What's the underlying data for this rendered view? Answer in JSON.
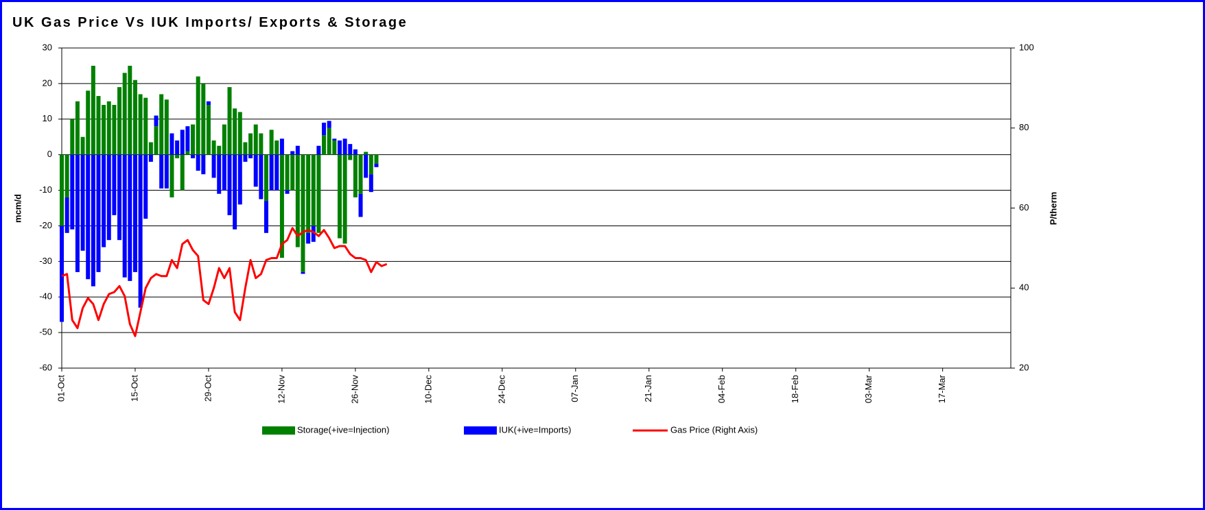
{
  "chart_data": {
    "type": "bar",
    "stacked": true,
    "title": "UK Gas Price Vs IUK Imports/ Exports & Storage",
    "y_label": "mcm/d",
    "y2_label": "P/therm",
    "ylim": [
      -60,
      30
    ],
    "yticks": [
      -60,
      -50,
      -40,
      -30,
      -20,
      -10,
      0,
      10,
      20,
      30
    ],
    "y2lim": [
      20,
      100
    ],
    "y2ticks": [
      20,
      40,
      60,
      80,
      100
    ],
    "grid": true,
    "legend": "bottom",
    "categories": [
      "01-Oct",
      null,
      null,
      null,
      null,
      null,
      null,
      null,
      null,
      null,
      null,
      null,
      null,
      null,
      "15-Oct",
      null,
      null,
      null,
      null,
      null,
      null,
      null,
      null,
      null,
      null,
      null,
      null,
      null,
      "29-Oct",
      null,
      null,
      null,
      null,
      null,
      null,
      null,
      null,
      null,
      null,
      null,
      null,
      null,
      "12-Nov",
      null,
      null,
      null,
      null,
      null,
      null,
      null,
      null,
      null,
      null,
      null,
      null,
      null,
      "26-Nov",
      null,
      null,
      null,
      null,
      null,
      null,
      null,
      null,
      null,
      null,
      null,
      null,
      null,
      "10-Dec",
      null,
      null,
      null,
      null,
      null,
      null,
      null,
      null,
      null,
      null,
      null,
      null,
      null,
      "24-Dec",
      null,
      null,
      null,
      null,
      null,
      null,
      null,
      null,
      null,
      null,
      null,
      null,
      null,
      "07-Jan",
      null,
      null,
      null,
      null,
      null,
      null,
      null,
      null,
      null,
      null,
      null,
      null,
      null,
      "21-Jan",
      null,
      null,
      null,
      null,
      null,
      null,
      null,
      null,
      null,
      null,
      null,
      null,
      null,
      "04-Feb",
      null,
      null,
      null,
      null,
      null,
      null,
      null,
      null,
      null,
      null,
      null,
      null,
      null,
      "18-Feb",
      null,
      null,
      null,
      null,
      null,
      null,
      null,
      null,
      null,
      null,
      null,
      null,
      null,
      "03-Mar",
      null,
      null,
      null,
      null,
      null,
      null,
      null,
      null,
      null,
      null,
      null,
      null,
      null,
      "17-Mar",
      null,
      null,
      null,
      null,
      null,
      null,
      null,
      null,
      null,
      null,
      null,
      null,
      null
    ],
    "series": [
      {
        "name": "Storage(+ive=Injection)",
        "color": "#008000",
        "type": "bar",
        "values": [
          -20,
          -12,
          10,
          15,
          5,
          18,
          25,
          16.5,
          14,
          15,
          14,
          19,
          23,
          25,
          21,
          17,
          16,
          3.5,
          8,
          17,
          15.5,
          -12,
          -1,
          -10,
          1,
          8.5,
          22,
          20,
          14,
          4,
          2.5,
          8.5,
          19,
          13,
          12,
          3.5,
          6,
          8.5,
          6,
          -13,
          7,
          4,
          -29,
          -10,
          -10,
          -26,
          -33,
          -22,
          -20,
          -22,
          5.5,
          7.5,
          4,
          -23.5,
          -25,
          -1.5,
          -12,
          -11,
          0.8,
          -5.5,
          -2.5,
          null,
          null,
          null,
          null,
          null,
          null,
          null,
          null,
          null,
          null,
          null,
          null,
          null,
          null,
          null,
          null,
          null,
          null,
          null,
          null,
          null,
          null,
          null,
          null,
          null,
          null,
          null,
          null,
          null,
          null,
          null,
          null,
          null,
          null,
          null,
          null,
          null,
          null,
          null,
          null,
          null,
          null,
          null,
          null,
          null,
          null,
          null,
          null,
          null,
          null,
          null,
          null,
          null,
          null,
          null,
          null,
          null,
          null,
          null,
          null,
          null,
          null,
          null,
          null,
          null,
          null,
          null,
          null,
          null,
          null,
          null,
          null,
          null,
          null,
          null,
          null,
          null,
          null,
          null,
          null,
          null,
          null,
          null,
          null,
          null,
          null,
          null,
          null,
          null,
          null,
          null,
          null,
          null,
          null,
          null,
          null,
          null,
          null,
          null,
          null,
          null,
          null,
          null,
          null,
          null,
          null,
          null,
          null,
          null,
          null,
          null,
          null,
          null,
          null,
          null,
          null,
          null,
          null,
          null,
          null,
          null
        ]
      },
      {
        "name": "IUK(+ive=Imports)",
        "color": "#0000ff",
        "type": "bar",
        "values": [
          -27,
          -10,
          -21,
          -33,
          -27,
          -35,
          -37,
          -33,
          -26,
          -24,
          -17,
          -24,
          -34.5,
          -35.5,
          -33,
          -43,
          -18,
          -2,
          3,
          -9.5,
          -9.5,
          6,
          4,
          7,
          7,
          -1,
          -4.5,
          -5.5,
          1,
          -6.5,
          -11,
          -10,
          -17,
          -21,
          -14,
          -2,
          -1,
          -9,
          -12.5,
          -9,
          -10,
          -10,
          4.5,
          -1,
          1,
          2.5,
          -0.5,
          -3,
          -4.5,
          2.5,
          3.5,
          2,
          0.5,
          4,
          4.5,
          3,
          1.5,
          -6.5,
          -6.5,
          -5,
          -1,
          null,
          null,
          null,
          null,
          null,
          null,
          null,
          null,
          null,
          null,
          null,
          null,
          null,
          null,
          null,
          null,
          null,
          null,
          null,
          null,
          null,
          null,
          null,
          null,
          null,
          null,
          null,
          null,
          null,
          null,
          null,
          null,
          null,
          null,
          null,
          null,
          null,
          null,
          null,
          null,
          null,
          null,
          null,
          null,
          null,
          null,
          null,
          null,
          null,
          null,
          null,
          null,
          null,
          null,
          null,
          null,
          null,
          null,
          null,
          null,
          null,
          null,
          null,
          null,
          null,
          null,
          null,
          null,
          null,
          null,
          null,
          null,
          null,
          null,
          null,
          null,
          null,
          null,
          null,
          null,
          null,
          null,
          null,
          null,
          null,
          null,
          null,
          null,
          null,
          null,
          null,
          null,
          null,
          null,
          null,
          null,
          null,
          null,
          null,
          null,
          null,
          null,
          null,
          null,
          null,
          null,
          null,
          null,
          null,
          null,
          null,
          null,
          null,
          null,
          null,
          null,
          null,
          null,
          null,
          null,
          null
        ]
      },
      {
        "name": "Gas Price (Right Axis)",
        "color": "#ff0000",
        "type": "line",
        "axis": "y2",
        "values": [
          43,
          43.5,
          32,
          30,
          35,
          37.5,
          36,
          32,
          36,
          38.5,
          39,
          40.5,
          38,
          31,
          28,
          34,
          40,
          42.5,
          43.5,
          43,
          43,
          47,
          45,
          51,
          52,
          49.5,
          48,
          37,
          36,
          40,
          45,
          42.5,
          45,
          34,
          32,
          40,
          47,
          42.5,
          43.5,
          47,
          47.5,
          47.5,
          51,
          52,
          55,
          53,
          54,
          54.5,
          54,
          53,
          54.5,
          52.5,
          50,
          50.5,
          50.5,
          48.5,
          47.5,
          47.5,
          47,
          44,
          46.5,
          45.5,
          46,
          null,
          null,
          null,
          null,
          null,
          null,
          null,
          null,
          null,
          null,
          null,
          null,
          null,
          null,
          null,
          null,
          null,
          null,
          null,
          null,
          null,
          null,
          null,
          null,
          null,
          null,
          null,
          null,
          null,
          null,
          null,
          null,
          null,
          null,
          null,
          null,
          null,
          null,
          null,
          null,
          null,
          null,
          null,
          null,
          null,
          null,
          null,
          null,
          null,
          null,
          null,
          null,
          null,
          null,
          null,
          null,
          null,
          null,
          null,
          null,
          null,
          null,
          null,
          null,
          null,
          null,
          null,
          null,
          null,
          null,
          null,
          null,
          null,
          null,
          null,
          null,
          null,
          null,
          null,
          null,
          null,
          null,
          null,
          null,
          null,
          null,
          null,
          null,
          null,
          null,
          null,
          null,
          null,
          null,
          null,
          null,
          null,
          null,
          null,
          null,
          null,
          null,
          null,
          null,
          null,
          null,
          null,
          null,
          null,
          null,
          null,
          null,
          null,
          null,
          null,
          null,
          null,
          null,
          null
        ]
      }
    ]
  }
}
